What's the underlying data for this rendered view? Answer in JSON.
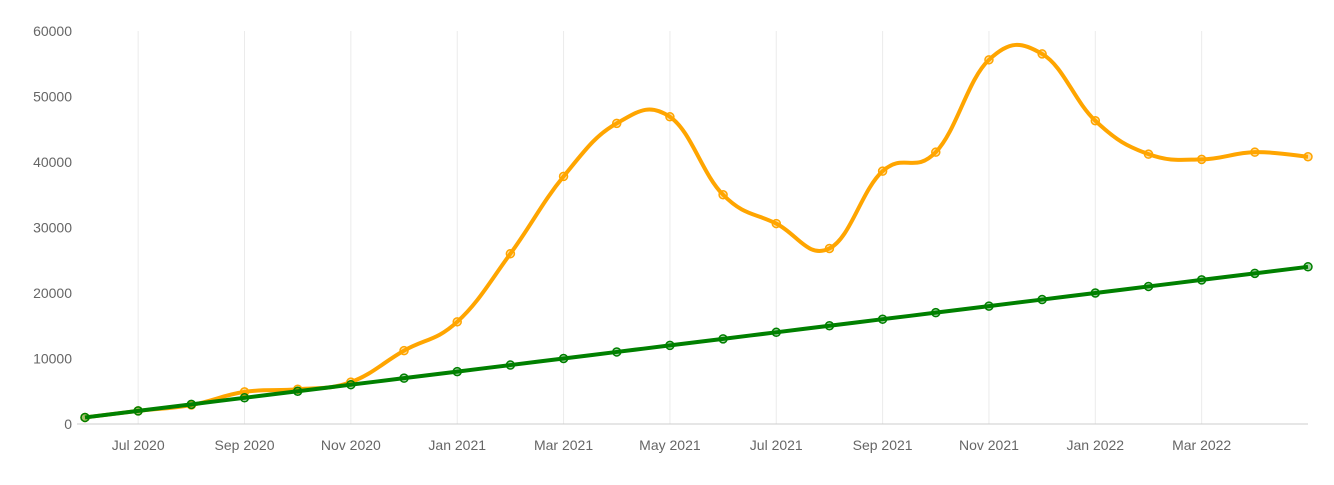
{
  "chart_data": {
    "type": "line",
    "title": "",
    "xlabel": "",
    "ylabel": "",
    "grid": true,
    "legend": "none",
    "ylim": [
      0,
      60000
    ],
    "yticks": [
      0,
      10000,
      20000,
      30000,
      40000,
      50000,
      60000
    ],
    "xticks": [
      "Jul 2020",
      "Sep 2020",
      "Nov 2020",
      "Jan 2021",
      "Mar 2021",
      "May 2021",
      "Jul 2021",
      "Sep 2021",
      "Nov 2021",
      "Jan 2022",
      "Mar 2022"
    ],
    "x": [
      "2020-06-01",
      "2020-07-01",
      "2020-08-01",
      "2020-09-01",
      "2020-10-01",
      "2020-11-01",
      "2020-12-01",
      "2021-01-01",
      "2021-02-01",
      "2021-03-01",
      "2021-04-01",
      "2021-05-01",
      "2021-06-01",
      "2021-07-01",
      "2021-08-01",
      "2021-09-01",
      "2021-10-01",
      "2021-11-01",
      "2021-12-01",
      "2022-01-01",
      "2022-02-01",
      "2022-03-01",
      "2022-04-01",
      "2022-05-01"
    ],
    "series": [
      {
        "color": "#ffa500",
        "values": [
          1000,
          2000,
          2900,
          4900,
          5300,
          6400,
          11200,
          15600,
          26000,
          37800,
          45900,
          46900,
          35000,
          30600,
          26800,
          38600,
          41500,
          55600,
          56500,
          46300,
          41200,
          40400,
          41500,
          40800
        ]
      },
      {
        "color": "#008000",
        "values": [
          1000,
          2000,
          3000,
          4000,
          5000,
          6000,
          7000,
          8000,
          9000,
          10000,
          11000,
          12000,
          13000,
          14000,
          15000,
          16000,
          17000,
          18000,
          19000,
          20000,
          21000,
          22000,
          23000,
          24000
        ]
      }
    ]
  }
}
